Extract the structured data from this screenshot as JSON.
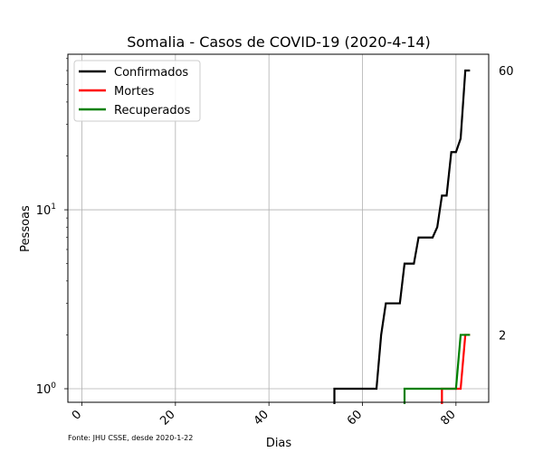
{
  "chart_data": {
    "type": "line",
    "title": "Somalia - Casos de COVID-19 (2020-4-14)",
    "xlabel": "Dias",
    "ylabel": "Pessoas",
    "yscale": "log",
    "xlim": [
      -3,
      87
    ],
    "ylim": [
      0.84,
      74
    ],
    "xticks": [
      0,
      20,
      40,
      60,
      80
    ],
    "yticks": [
      {
        "value": 1,
        "base": "10",
        "exp": "0"
      },
      {
        "value": 10,
        "base": "10",
        "exp": "1"
      }
    ],
    "grid": true,
    "legend_position": "upper-left",
    "source": "Fonte: JHU CSSE, desde 2020-1-22",
    "end_labels": [
      {
        "text": "60",
        "value": 60
      },
      {
        "text": "2",
        "value": 2
      }
    ],
    "series": [
      {
        "name": "Confirmados",
        "color": "#000000",
        "x": [
          54,
          55,
          56,
          57,
          58,
          59,
          60,
          61,
          62,
          63,
          64,
          65,
          66,
          67,
          68,
          69,
          70,
          71,
          72,
          73,
          74,
          75,
          76,
          77,
          78,
          79,
          80,
          81,
          82,
          83
        ],
        "y": [
          1,
          1,
          1,
          1,
          1,
          1,
          1,
          1,
          1,
          1,
          2,
          3,
          3,
          3,
          3,
          5,
          5,
          5,
          7,
          7,
          7,
          7,
          8,
          12,
          12,
          21,
          21,
          25,
          60,
          60
        ]
      },
      {
        "name": "Mortes",
        "color": "#ff0000",
        "x": [
          77,
          78,
          79,
          80,
          81,
          82,
          83
        ],
        "y": [
          1,
          1,
          1,
          1,
          1,
          2,
          2
        ]
      },
      {
        "name": "Recuperados",
        "color": "#008000",
        "x": [
          69,
          70,
          71,
          72,
          73,
          74,
          75,
          76,
          77,
          78,
          79,
          80,
          81,
          82,
          83
        ],
        "y": [
          1,
          1,
          1,
          1,
          1,
          1,
          1,
          1,
          1,
          1,
          1,
          1,
          2,
          2,
          2
        ]
      }
    ]
  }
}
